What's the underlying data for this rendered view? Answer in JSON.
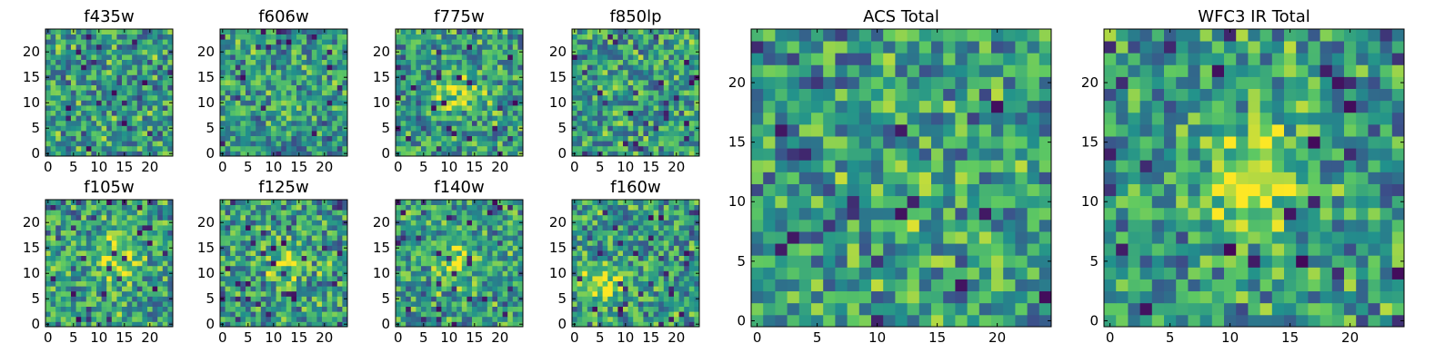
{
  "figure": {
    "colormap": "viridis",
    "color_range": [
      0,
      1
    ],
    "colormap_stops": [
      "#440154",
      "#3b528b",
      "#21918c",
      "#5ec962",
      "#fde725"
    ]
  },
  "chart_data": [
    {
      "type": "heatmap",
      "title": "f435w",
      "grid": [
        25,
        25
      ],
      "seed": 101,
      "blob": null,
      "xticks": [
        0,
        5,
        10,
        15,
        20
      ],
      "yticks": [
        0,
        5,
        10,
        15,
        20
      ],
      "xlim": [
        -0.5,
        24.5
      ],
      "ylim": [
        -0.5,
        24.5
      ]
    },
    {
      "type": "heatmap",
      "title": "f606w",
      "grid": [
        25,
        25
      ],
      "seed": 202,
      "blob": null,
      "xticks": [
        0,
        5,
        10,
        15,
        20
      ],
      "yticks": [
        0,
        5,
        10,
        15,
        20
      ],
      "xlim": [
        -0.5,
        24.5
      ],
      "ylim": [
        -0.5,
        24.5
      ]
    },
    {
      "type": "heatmap",
      "title": "f775w",
      "grid": [
        25,
        25
      ],
      "seed": 303,
      "blob": {
        "x": 12,
        "y": 12,
        "amp": 0.25
      },
      "xticks": [
        0,
        5,
        10,
        15,
        20
      ],
      "yticks": [
        0,
        5,
        10,
        15,
        20
      ],
      "xlim": [
        -0.5,
        24.5
      ],
      "ylim": [
        -0.5,
        24.5
      ]
    },
    {
      "type": "heatmap",
      "title": "f850lp",
      "grid": [
        25,
        25
      ],
      "seed": 404,
      "blob": null,
      "xticks": [
        0,
        5,
        10,
        15,
        20
      ],
      "yticks": [
        0,
        5,
        10,
        15,
        20
      ],
      "xlim": [
        -0.5,
        24.5
      ],
      "ylim": [
        -0.5,
        24.5
      ]
    },
    {
      "type": "heatmap",
      "title": "f105w",
      "grid": [
        25,
        25
      ],
      "seed": 505,
      "blob": {
        "x": 14,
        "y": 13,
        "amp": 0.35
      },
      "xticks": [
        0,
        5,
        10,
        15,
        20
      ],
      "yticks": [
        0,
        5,
        10,
        15,
        20
      ],
      "xlim": [
        -0.5,
        24.5
      ],
      "ylim": [
        -0.5,
        24.5
      ]
    },
    {
      "type": "heatmap",
      "title": "f125w",
      "grid": [
        25,
        25
      ],
      "seed": 606,
      "blob": {
        "x": 13,
        "y": 12,
        "amp": 0.3
      },
      "xticks": [
        0,
        5,
        10,
        15,
        20
      ],
      "yticks": [
        0,
        5,
        10,
        15,
        20
      ],
      "xlim": [
        -0.5,
        24.5
      ],
      "ylim": [
        -0.5,
        24.5
      ]
    },
    {
      "type": "heatmap",
      "title": "f140w",
      "grid": [
        25,
        25
      ],
      "seed": 707,
      "blob": {
        "x": 11,
        "y": 12,
        "amp": 0.3
      },
      "xticks": [
        0,
        5,
        10,
        15,
        20
      ],
      "yticks": [
        0,
        5,
        10,
        15,
        20
      ],
      "xlim": [
        -0.5,
        24.5
      ],
      "ylim": [
        -0.5,
        24.5
      ]
    },
    {
      "type": "heatmap",
      "title": "f160w",
      "grid": [
        25,
        25
      ],
      "seed": 808,
      "blob": {
        "x": 6,
        "y": 8,
        "amp": 0.3
      },
      "xticks": [
        0,
        5,
        10,
        15,
        20
      ],
      "yticks": [
        0,
        5,
        10,
        15,
        20
      ],
      "xlim": [
        -0.5,
        24.5
      ],
      "ylim": [
        -0.5,
        24.5
      ]
    },
    {
      "type": "heatmap",
      "title": "ACS Total",
      "grid": [
        25,
        25
      ],
      "seed": 909,
      "blob": {
        "x": 12,
        "y": 11,
        "amp": 0.15
      },
      "xticks": [
        0,
        5,
        10,
        15,
        20
      ],
      "yticks": [
        0,
        5,
        10,
        15,
        20
      ],
      "xlim": [
        -0.5,
        24.5
      ],
      "ylim": [
        -0.5,
        24.5
      ]
    },
    {
      "type": "heatmap",
      "title": "WFC3 IR Total",
      "grid": [
        25,
        25
      ],
      "seed": 1111,
      "blob": {
        "x": 12,
        "y": 12,
        "amp": 0.45
      },
      "xticks": [
        0,
        5,
        10,
        15,
        20
      ],
      "yticks": [
        0,
        5,
        10,
        15,
        20
      ],
      "xlim": [
        -0.5,
        24.5
      ],
      "ylim": [
        -0.5,
        24.5
      ]
    }
  ]
}
